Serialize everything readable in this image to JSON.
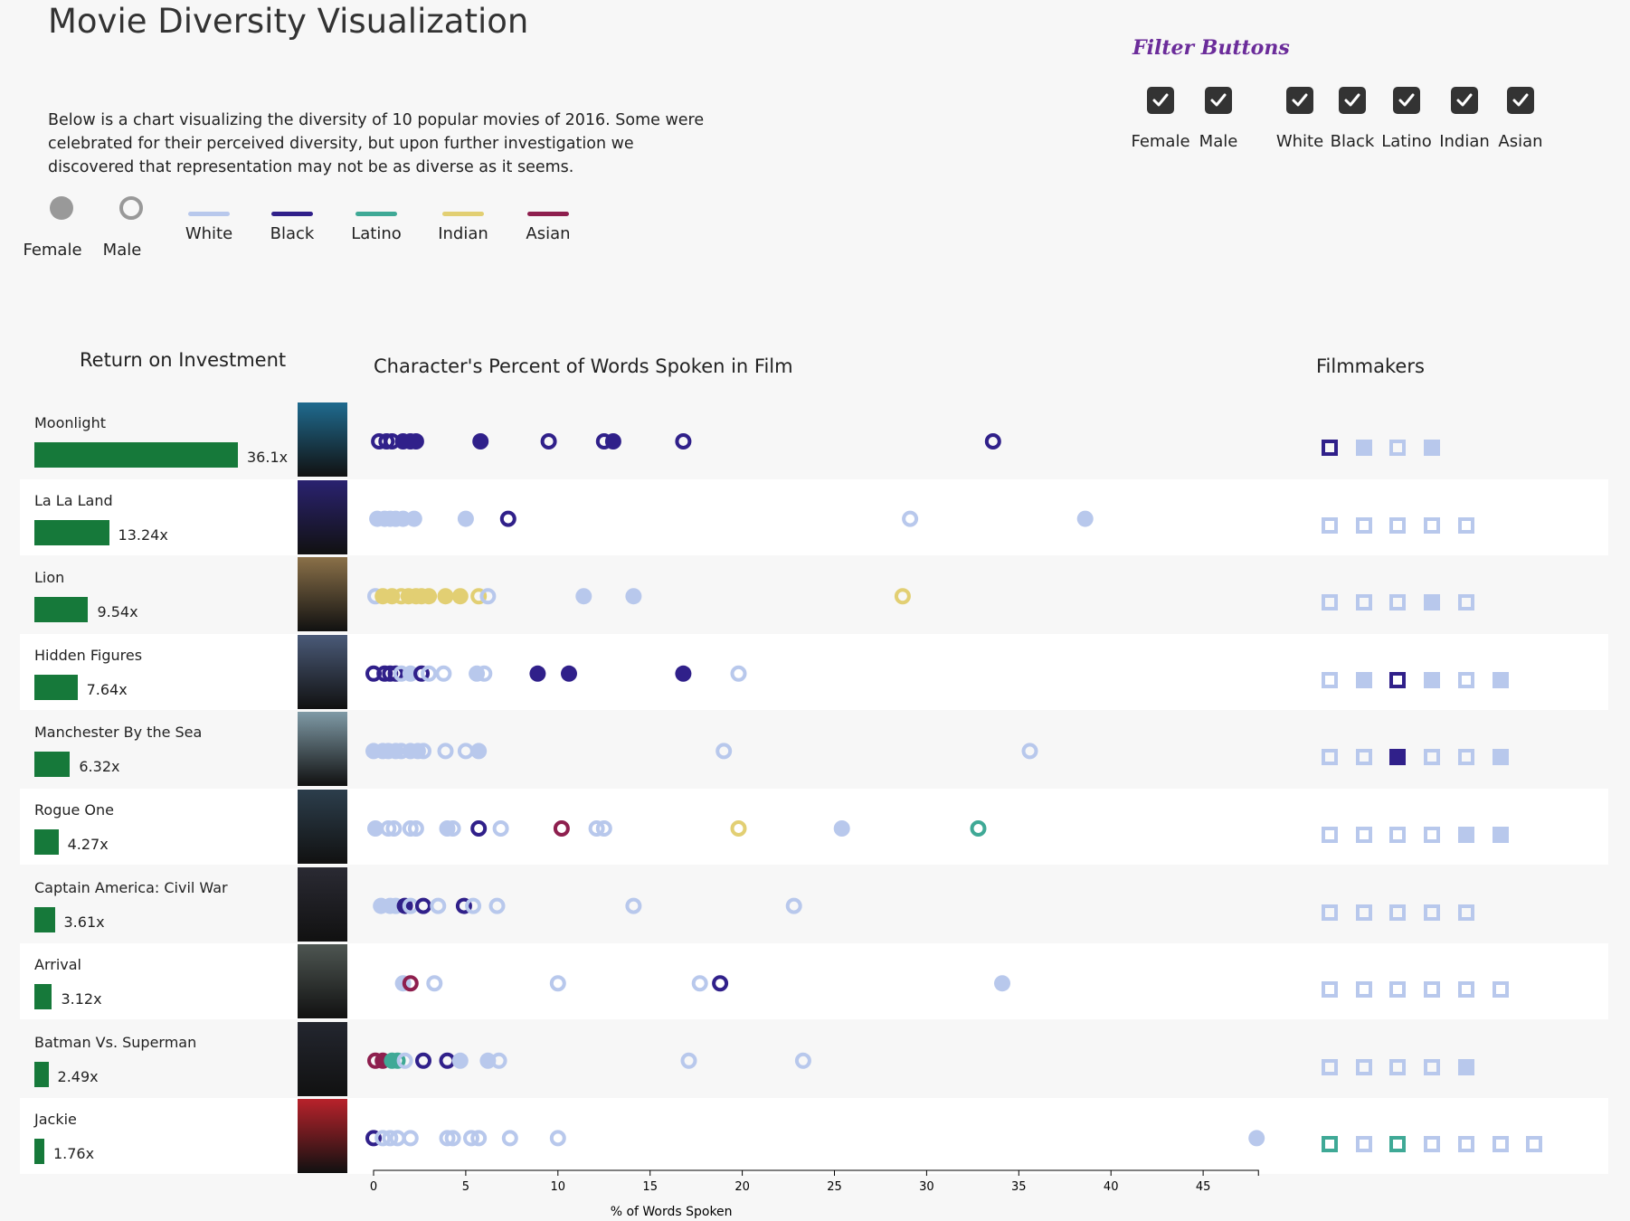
{
  "title": "Movie Diversity Visualization",
  "intro": "Below is a chart visualizing the diversity of 10 popular movies of 2016. Some were celebrated for their perceived diversity, but upon further investigation we discovered that representation may not be as diverse as it seems.",
  "colors": {
    "White": "#b8c8ec",
    "Black": "#30208a",
    "Latino": "#3fa996",
    "Indian": "#e2cf73",
    "Asian": "#8e1f4e",
    "roi_bar": "#16793a",
    "female_legend": "#999999",
    "male_legend": "#999999",
    "filter_title": "#6b2c9a"
  },
  "legend": {
    "gender": [
      {
        "label": "Female",
        "style": "filled"
      },
      {
        "label": "Male",
        "style": "hollow"
      }
    ],
    "ethnicity": [
      "White",
      "Black",
      "Latino",
      "Indian",
      "Asian"
    ]
  },
  "filters": {
    "title": "Filter Buttons",
    "gender": [
      "Female",
      "Male"
    ],
    "ethnicity": [
      "White",
      "Black",
      "Latino",
      "Indian",
      "Asian"
    ],
    "icon": "checkmark-icon"
  },
  "headers": {
    "roi": "Return on Investment",
    "chart": "Character's Percent of Words Spoken in Film",
    "filmmakers": "Filmmakers"
  },
  "chart_data": {
    "type": "scatter",
    "title": "Character's Percent of Words Spoken in Film",
    "xlabel": "% of Words Spoken",
    "xlim": [
      0,
      48
    ],
    "xticks": [
      0,
      5,
      10,
      15,
      20,
      25,
      30,
      35,
      40,
      45
    ],
    "movies": [
      {
        "name": "Moonlight",
        "roi": 36.1,
        "roi_label": "36.1x",
        "poster_color": "#1f6b8f",
        "characters": [
          [
            0.3,
            "M",
            "Black"
          ],
          [
            0.7,
            "M",
            "Black"
          ],
          [
            1.0,
            "M",
            "Black"
          ],
          [
            1.6,
            "F",
            "Black"
          ],
          [
            2.0,
            "M",
            "Black"
          ],
          [
            2.3,
            "F",
            "Black"
          ],
          [
            5.8,
            "F",
            "Black"
          ],
          [
            9.5,
            "M",
            "Black"
          ],
          [
            12.5,
            "M",
            "Black"
          ],
          [
            13.0,
            "F",
            "Black"
          ],
          [
            16.8,
            "M",
            "Black"
          ],
          [
            33.6,
            "M",
            "Black"
          ]
        ],
        "filmmakers": [
          [
            "Black",
            "hollow"
          ],
          [
            "White",
            "filled"
          ],
          [
            "White",
            "hollow"
          ],
          [
            "White",
            "filled"
          ]
        ]
      },
      {
        "name": "La La Land",
        "roi": 13.24,
        "roi_label": "13.24x",
        "poster_color": "#2a2270",
        "characters": [
          [
            0.2,
            "F",
            "White"
          ],
          [
            0.6,
            "F",
            "White"
          ],
          [
            0.9,
            "F",
            "White"
          ],
          [
            1.2,
            "M",
            "White"
          ],
          [
            1.6,
            "F",
            "White"
          ],
          [
            2.2,
            "F",
            "White"
          ],
          [
            5.0,
            "F",
            "White"
          ],
          [
            7.3,
            "M",
            "Black"
          ],
          [
            29.1,
            "M",
            "White"
          ],
          [
            38.6,
            "F",
            "White"
          ]
        ],
        "filmmakers": [
          [
            "White",
            "hollow"
          ],
          [
            "White",
            "hollow"
          ],
          [
            "White",
            "hollow"
          ],
          [
            "White",
            "hollow"
          ],
          [
            "White",
            "hollow"
          ]
        ]
      },
      {
        "name": "Lion",
        "roi": 9.54,
        "roi_label": "9.54x",
        "poster_color": "#8a7048",
        "characters": [
          [
            0.1,
            "M",
            "White"
          ],
          [
            0.5,
            "F",
            "Indian"
          ],
          [
            1.0,
            "F",
            "Indian"
          ],
          [
            1.5,
            "M",
            "Indian"
          ],
          [
            1.9,
            "F",
            "Indian"
          ],
          [
            2.3,
            "F",
            "Indian"
          ],
          [
            2.6,
            "F",
            "Indian"
          ],
          [
            3.0,
            "F",
            "Indian"
          ],
          [
            3.9,
            "F",
            "Indian"
          ],
          [
            4.7,
            "F",
            "Indian"
          ],
          [
            5.7,
            "M",
            "Indian"
          ],
          [
            6.2,
            "M",
            "White"
          ],
          [
            11.4,
            "F",
            "White"
          ],
          [
            14.1,
            "F",
            "White"
          ],
          [
            28.7,
            "M",
            "Indian"
          ]
        ],
        "filmmakers": [
          [
            "White",
            "hollow"
          ],
          [
            "White",
            "hollow"
          ],
          [
            "White",
            "hollow"
          ],
          [
            "White",
            "filled"
          ],
          [
            "White",
            "hollow"
          ]
        ]
      },
      {
        "name": "Hidden Figures",
        "roi": 7.64,
        "roi_label": "7.64x",
        "poster_color": "#4a5a78",
        "characters": [
          [
            0.0,
            "M",
            "Black"
          ],
          [
            0.6,
            "M",
            "Black"
          ],
          [
            0.9,
            "M",
            "Black"
          ],
          [
            1.2,
            "M",
            "Black"
          ],
          [
            1.5,
            "M",
            "White"
          ],
          [
            2.0,
            "F",
            "White"
          ],
          [
            2.6,
            "M",
            "Black"
          ],
          [
            3.0,
            "M",
            "White"
          ],
          [
            3.8,
            "M",
            "White"
          ],
          [
            5.6,
            "F",
            "White"
          ],
          [
            6.0,
            "M",
            "White"
          ],
          [
            8.9,
            "F",
            "Black"
          ],
          [
            10.6,
            "F",
            "Black"
          ],
          [
            16.8,
            "F",
            "Black"
          ],
          [
            19.8,
            "M",
            "White"
          ]
        ],
        "filmmakers": [
          [
            "White",
            "hollow"
          ],
          [
            "White",
            "filled"
          ],
          [
            "Black",
            "hollow"
          ],
          [
            "White",
            "filled"
          ],
          [
            "White",
            "hollow"
          ],
          [
            "White",
            "filled"
          ]
        ]
      },
      {
        "name": "Manchester By the Sea",
        "roi": 6.32,
        "roi_label": "6.32x",
        "poster_color": "#7f9aa6",
        "characters": [
          [
            0.0,
            "F",
            "White"
          ],
          [
            0.5,
            "F",
            "White"
          ],
          [
            0.8,
            "M",
            "White"
          ],
          [
            1.2,
            "F",
            "White"
          ],
          [
            1.5,
            "M",
            "White"
          ],
          [
            2.0,
            "F",
            "White"
          ],
          [
            2.4,
            "F",
            "White"
          ],
          [
            2.7,
            "M",
            "White"
          ],
          [
            3.9,
            "M",
            "White"
          ],
          [
            5.0,
            "M",
            "White"
          ],
          [
            5.7,
            "F",
            "White"
          ],
          [
            19.0,
            "M",
            "White"
          ],
          [
            35.6,
            "M",
            "White"
          ]
        ],
        "filmmakers": [
          [
            "White",
            "hollow"
          ],
          [
            "White",
            "hollow"
          ],
          [
            "Black",
            "filled"
          ],
          [
            "White",
            "hollow"
          ],
          [
            "White",
            "hollow"
          ],
          [
            "White",
            "filled"
          ]
        ]
      },
      {
        "name": "Rogue One",
        "roi": 4.27,
        "roi_label": "4.27x",
        "poster_color": "#2c3e4c",
        "characters": [
          [
            0.1,
            "F",
            "White"
          ],
          [
            0.8,
            "M",
            "White"
          ],
          [
            1.1,
            "M",
            "White"
          ],
          [
            2.0,
            "M",
            "White"
          ],
          [
            2.3,
            "M",
            "White"
          ],
          [
            4.0,
            "F",
            "White"
          ],
          [
            4.3,
            "M",
            "White"
          ],
          [
            5.7,
            "M",
            "Black"
          ],
          [
            6.9,
            "M",
            "White"
          ],
          [
            10.2,
            "M",
            "Asian"
          ],
          [
            12.1,
            "M",
            "White"
          ],
          [
            12.5,
            "M",
            "White"
          ],
          [
            19.8,
            "M",
            "Indian"
          ],
          [
            25.4,
            "F",
            "White"
          ],
          [
            32.8,
            "M",
            "Latino"
          ]
        ],
        "filmmakers": [
          [
            "White",
            "hollow"
          ],
          [
            "White",
            "hollow"
          ],
          [
            "White",
            "hollow"
          ],
          [
            "White",
            "hollow"
          ],
          [
            "White",
            "filled"
          ],
          [
            "White",
            "filled"
          ]
        ]
      },
      {
        "name": "Captain America: Civil War",
        "roi": 3.61,
        "roi_label": "3.61x",
        "poster_color": "#2a2a33",
        "characters": [
          [
            0.4,
            "F",
            "White"
          ],
          [
            0.9,
            "F",
            "White"
          ],
          [
            1.2,
            "M",
            "White"
          ],
          [
            1.7,
            "F",
            "Black"
          ],
          [
            2.0,
            "M",
            "White"
          ],
          [
            2.7,
            "M",
            "Black"
          ],
          [
            3.5,
            "M",
            "White"
          ],
          [
            4.9,
            "M",
            "Black"
          ],
          [
            5.4,
            "M",
            "White"
          ],
          [
            6.7,
            "M",
            "White"
          ],
          [
            14.1,
            "M",
            "White"
          ],
          [
            22.8,
            "M",
            "White"
          ]
        ],
        "filmmakers": [
          [
            "White",
            "hollow"
          ],
          [
            "White",
            "hollow"
          ],
          [
            "White",
            "hollow"
          ],
          [
            "White",
            "hollow"
          ],
          [
            "White",
            "hollow"
          ]
        ]
      },
      {
        "name": "Arrival",
        "roi": 3.12,
        "roi_label": "3.12x",
        "poster_color": "#4e5652",
        "characters": [
          [
            1.6,
            "F",
            "White"
          ],
          [
            2.0,
            "M",
            "Asian"
          ],
          [
            3.3,
            "M",
            "White"
          ],
          [
            10.0,
            "M",
            "White"
          ],
          [
            17.7,
            "M",
            "White"
          ],
          [
            18.8,
            "M",
            "Black"
          ],
          [
            34.1,
            "F",
            "White"
          ]
        ],
        "filmmakers": [
          [
            "White",
            "hollow"
          ],
          [
            "White",
            "hollow"
          ],
          [
            "White",
            "hollow"
          ],
          [
            "White",
            "hollow"
          ],
          [
            "White",
            "hollow"
          ],
          [
            "White",
            "hollow"
          ]
        ]
      },
      {
        "name": "Batman Vs. Superman",
        "roi": 2.49,
        "roi_label": "2.49x",
        "poster_color": "#23262f",
        "characters": [
          [
            0.1,
            "M",
            "Asian"
          ],
          [
            0.5,
            "F",
            "Asian"
          ],
          [
            1.0,
            "F",
            "Latino"
          ],
          [
            1.3,
            "M",
            "Latino"
          ],
          [
            1.7,
            "M",
            "White"
          ],
          [
            2.7,
            "M",
            "Black"
          ],
          [
            4.0,
            "M",
            "Black"
          ],
          [
            4.7,
            "F",
            "White"
          ],
          [
            6.2,
            "F",
            "White"
          ],
          [
            6.8,
            "M",
            "White"
          ],
          [
            17.1,
            "M",
            "White"
          ],
          [
            23.3,
            "M",
            "White"
          ]
        ],
        "filmmakers": [
          [
            "White",
            "hollow"
          ],
          [
            "White",
            "hollow"
          ],
          [
            "White",
            "hollow"
          ],
          [
            "White",
            "hollow"
          ],
          [
            "White",
            "filled"
          ]
        ]
      },
      {
        "name": "Jackie",
        "roi": 1.76,
        "roi_label": "1.76x",
        "poster_color": "#b8222b",
        "characters": [
          [
            0.0,
            "M",
            "Black"
          ],
          [
            0.5,
            "M",
            "White"
          ],
          [
            0.9,
            "M",
            "White"
          ],
          [
            1.3,
            "M",
            "White"
          ],
          [
            2.0,
            "M",
            "White"
          ],
          [
            4.0,
            "M",
            "White"
          ],
          [
            4.3,
            "M",
            "White"
          ],
          [
            5.3,
            "M",
            "White"
          ],
          [
            5.7,
            "M",
            "White"
          ],
          [
            7.4,
            "M",
            "White"
          ],
          [
            10.0,
            "M",
            "White"
          ],
          [
            47.9,
            "F",
            "White"
          ]
        ],
        "filmmakers": [
          [
            "Latino",
            "hollow"
          ],
          [
            "White",
            "hollow"
          ],
          [
            "Latino",
            "hollow"
          ],
          [
            "White",
            "hollow"
          ],
          [
            "White",
            "hollow"
          ],
          [
            "White",
            "hollow"
          ],
          [
            "White",
            "hollow"
          ]
        ]
      }
    ]
  }
}
